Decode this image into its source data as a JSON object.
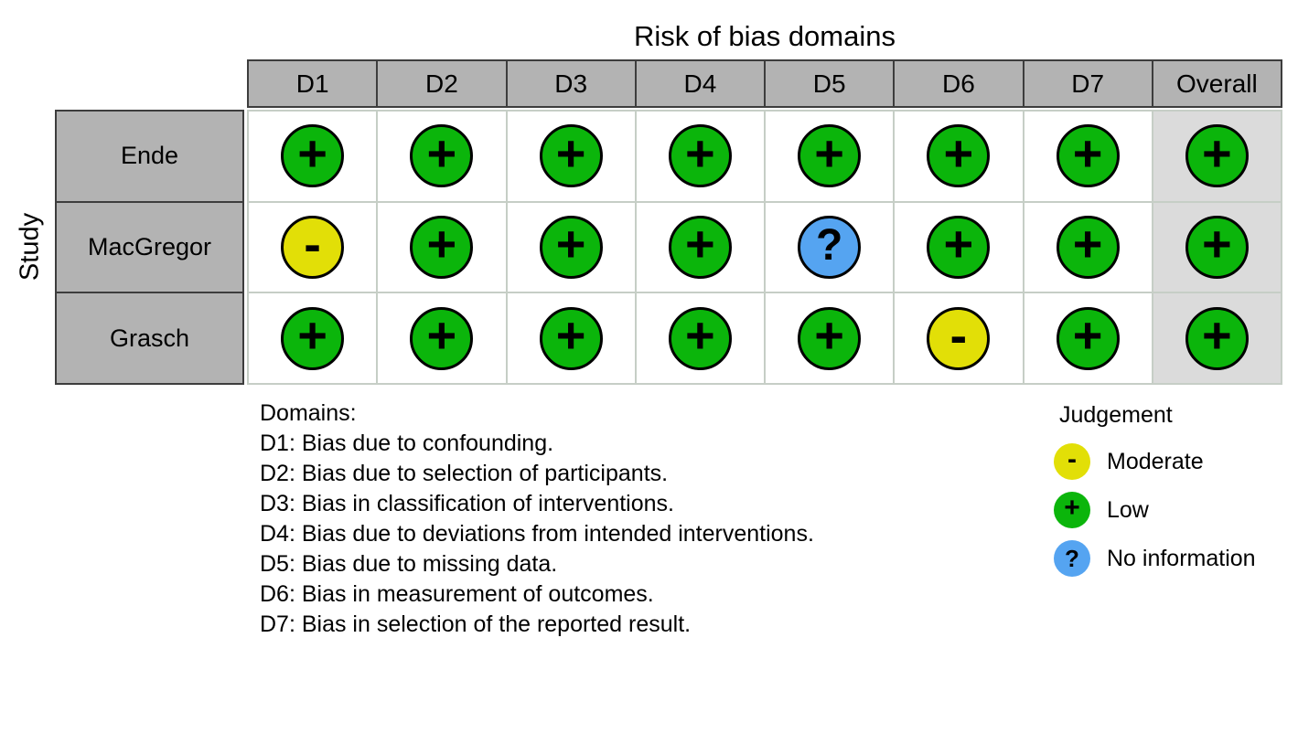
{
  "chart_data": {
    "type": "table",
    "title": "Risk of bias domains",
    "y_axis_label": "Study",
    "columns": [
      "D1",
      "D2",
      "D3",
      "D4",
      "D5",
      "D6",
      "D7",
      "Overall"
    ],
    "rows": [
      {
        "study": "Ende",
        "judgements": [
          "low",
          "low",
          "low",
          "low",
          "low",
          "low",
          "low",
          "low"
        ]
      },
      {
        "study": "MacGregor",
        "judgements": [
          "moderate",
          "low",
          "low",
          "low",
          "no_information",
          "low",
          "low",
          "low"
        ]
      },
      {
        "study": "Grasch",
        "judgements": [
          "low",
          "low",
          "low",
          "low",
          "low",
          "moderate",
          "low",
          "low"
        ]
      }
    ],
    "judgement_styles": {
      "low": {
        "label": "Low",
        "symbol": "+",
        "color": "#0BB50B"
      },
      "moderate": {
        "label": "Moderate",
        "symbol": "-",
        "color": "#E2DF07"
      },
      "no_information": {
        "label": "No information",
        "symbol": "?",
        "color": "#55A4F1"
      }
    },
    "legend": {
      "title": "Judgement",
      "items": [
        "moderate",
        "low",
        "no_information"
      ]
    },
    "domains_heading": "Domains:",
    "domains": [
      "D1: Bias due to confounding.",
      "D2: Bias due to selection of participants.",
      "D3: Bias in classification of interventions.",
      "D4: Bias due to deviations from intended interventions.",
      "D5: Bias due to missing data.",
      "D6: Bias in measurement of outcomes.",
      "D7: Bias in selection of the reported result."
    ],
    "layout_colors": {
      "header_fill": "#B3B3B3",
      "overall_column_fill": "#DBDBDB",
      "grid_line": "#C6CEC6",
      "circle_outline": "#000000"
    }
  }
}
